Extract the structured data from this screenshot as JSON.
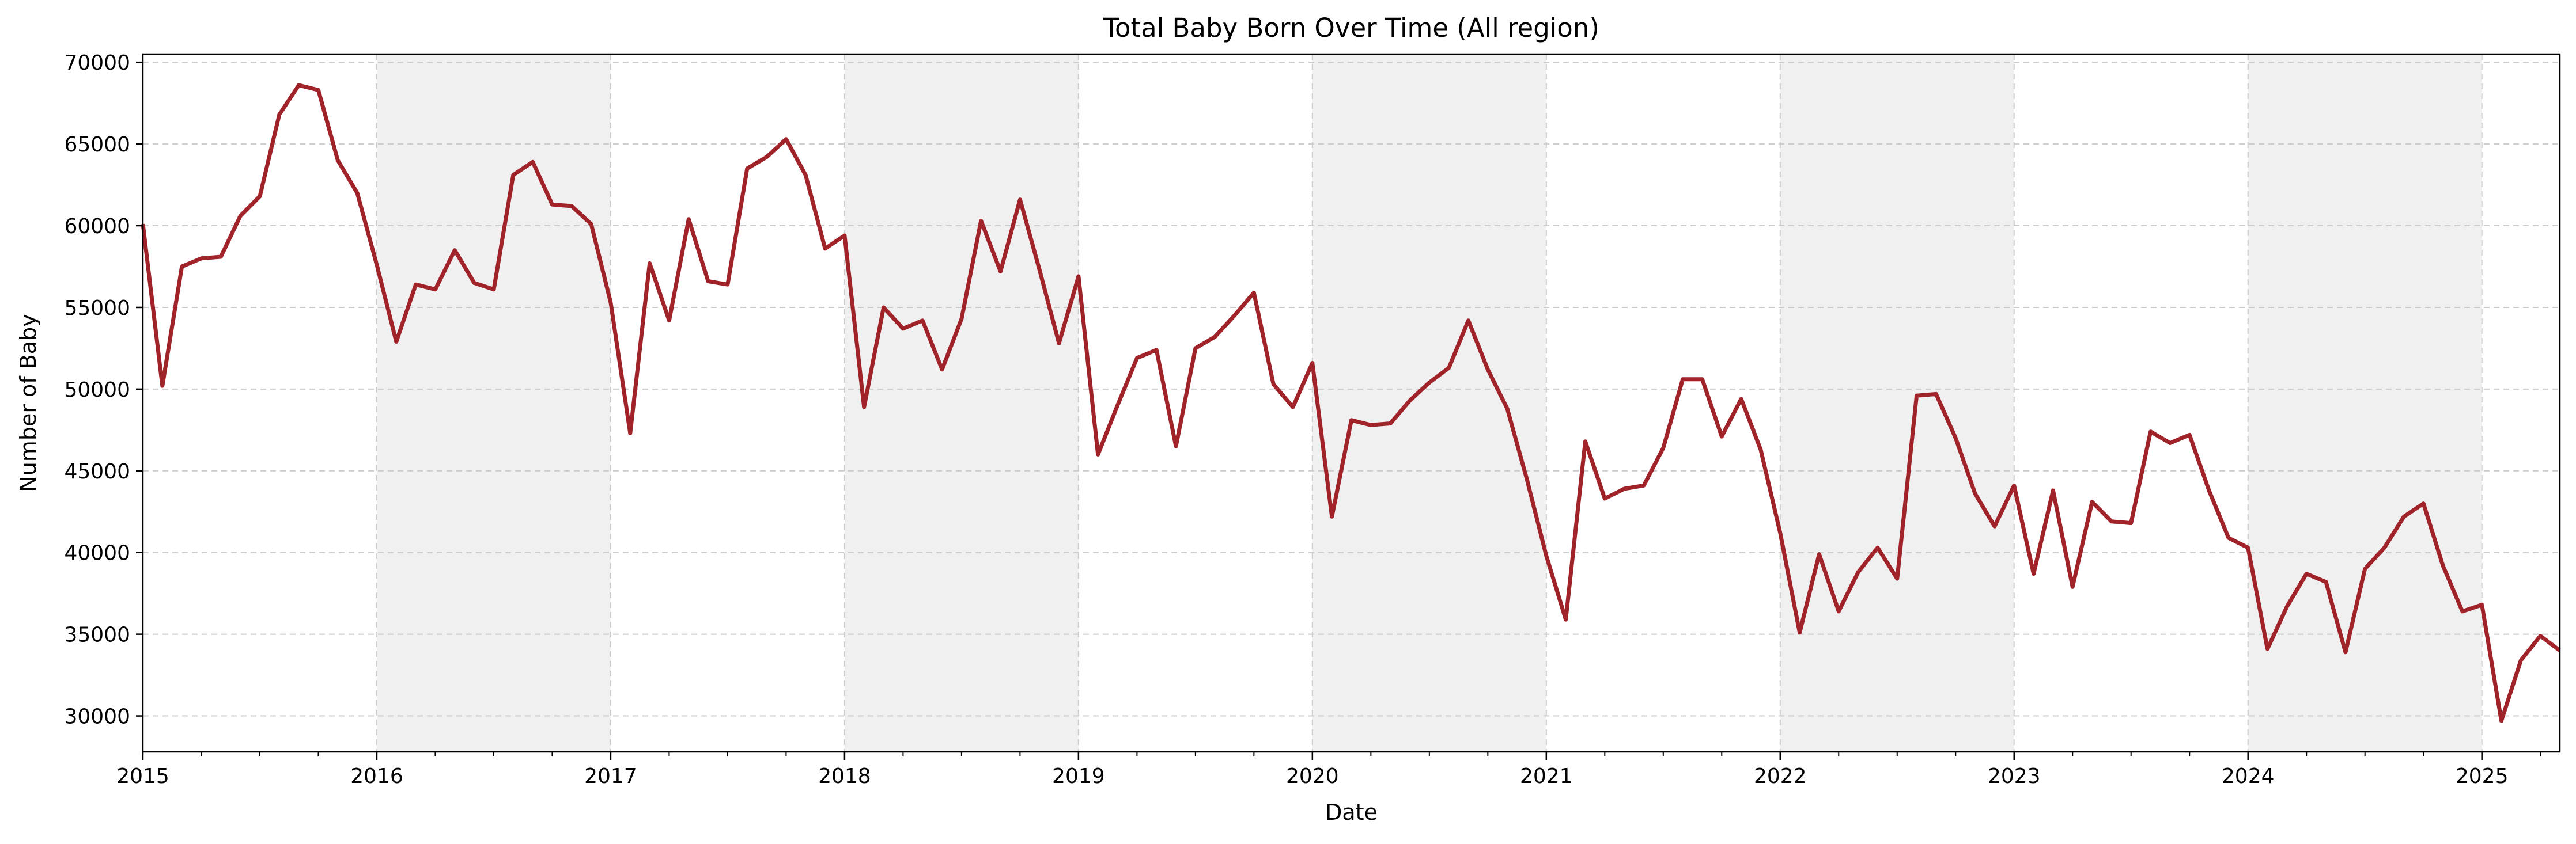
{
  "chart_data": {
    "type": "line",
    "title": "Total Baby Born Over Time (All region)",
    "xlabel": "Date",
    "ylabel": "Number of Baby",
    "x_tick_labels": [
      "2015",
      "2016",
      "2017",
      "2018",
      "2019",
      "2020",
      "2021",
      "2022",
      "2023",
      "2024",
      "2025"
    ],
    "y_tick_labels": [
      "30000",
      "35000",
      "40000",
      "45000",
      "50000",
      "55000",
      "60000",
      "65000",
      "70000"
    ],
    "y_ticks": [
      30000,
      35000,
      40000,
      45000,
      50000,
      55000,
      60000,
      65000,
      70000
    ],
    "xlim": [
      "2015-01",
      "2025-05"
    ],
    "ylim": [
      27800,
      70500
    ],
    "grid": true,
    "shaded_years": [
      "2016",
      "2018",
      "2020",
      "2022",
      "2024"
    ],
    "colors": {
      "line": "#a0232a",
      "shade": "#f0f0f0",
      "grid": "#cccccc"
    },
    "series": [
      {
        "x": [
          "2015-01",
          "2015-02",
          "2015-03",
          "2015-04",
          "2015-05",
          "2015-06",
          "2015-07",
          "2015-08",
          "2015-09",
          "2015-10",
          "2015-11",
          "2015-12",
          "2016-01",
          "2016-02",
          "2016-03",
          "2016-04",
          "2016-05",
          "2016-06",
          "2016-07",
          "2016-08",
          "2016-09",
          "2016-10",
          "2016-11",
          "2016-12",
          "2017-01",
          "2017-02",
          "2017-03",
          "2017-04",
          "2017-05",
          "2017-06",
          "2017-07",
          "2017-08",
          "2017-09",
          "2017-10",
          "2017-11",
          "2017-12",
          "2018-01",
          "2018-02",
          "2018-03",
          "2018-04",
          "2018-05",
          "2018-06",
          "2018-07",
          "2018-08",
          "2018-09",
          "2018-10",
          "2018-11",
          "2018-12",
          "2019-01",
          "2019-02",
          "2019-03",
          "2019-04",
          "2019-05",
          "2019-06",
          "2019-07",
          "2019-08",
          "2019-09",
          "2019-10",
          "2019-11",
          "2019-12",
          "2020-01",
          "2020-02",
          "2020-03",
          "2020-04",
          "2020-05",
          "2020-06",
          "2020-07",
          "2020-08",
          "2020-09",
          "2020-10",
          "2020-11",
          "2020-12",
          "2021-01",
          "2021-02",
          "2021-03",
          "2021-04",
          "2021-05",
          "2021-06",
          "2021-07",
          "2021-08",
          "2021-09",
          "2021-10",
          "2021-11",
          "2021-12",
          "2022-01",
          "2022-02",
          "2022-03",
          "2022-04",
          "2022-05",
          "2022-06",
          "2022-07",
          "2022-08",
          "2022-09",
          "2022-10",
          "2022-11",
          "2022-12",
          "2023-01",
          "2023-02",
          "2023-03",
          "2023-04",
          "2023-05",
          "2023-06",
          "2023-07",
          "2023-08",
          "2023-09",
          "2023-10",
          "2023-11",
          "2023-12",
          "2024-01",
          "2024-02",
          "2024-03",
          "2024-04",
          "2024-05",
          "2024-06",
          "2024-07",
          "2024-08",
          "2024-09",
          "2024-10",
          "2024-11",
          "2024-12",
          "2025-01",
          "2025-02",
          "2025-03",
          "2025-04",
          "2025-05"
        ],
        "values": [
          60100,
          50200,
          57500,
          58000,
          58100,
          60600,
          61800,
          66800,
          68600,
          68300,
          64000,
          62000,
          57600,
          52900,
          56400,
          56100,
          58500,
          56500,
          56100,
          63100,
          63900,
          61300,
          61200,
          60100,
          55300,
          47300,
          57700,
          54200,
          60400,
          56600,
          56400,
          63500,
          64200,
          65300,
          63100,
          58600,
          59400,
          48900,
          55000,
          53700,
          54200,
          51200,
          54300,
          60300,
          57200,
          61600,
          57300,
          52800,
          56900,
          46000,
          49000,
          51900,
          52400,
          46500,
          52500,
          53200,
          54500,
          55900,
          50300,
          48900,
          51600,
          42200,
          48100,
          47800,
          47900,
          49300,
          50400,
          51300,
          54200,
          51200,
          48800,
          44500,
          39800,
          35900,
          46800,
          43300,
          43900,
          44100,
          46400,
          50600,
          50600,
          47100,
          49400,
          46300,
          41200,
          35100,
          39900,
          36400,
          38800,
          40300,
          38400,
          49600,
          49700,
          47000,
          43600,
          41600,
          44100,
          38700,
          43800,
          37900,
          43100,
          41900,
          41800,
          47400,
          46700,
          47200,
          43800,
          40900,
          40300,
          34100,
          36700,
          38700,
          38200,
          33900,
          39000,
          40300,
          42200,
          43000,
          39200,
          36400,
          36800,
          29700,
          33400,
          34900,
          34000
        ]
      }
    ]
  }
}
